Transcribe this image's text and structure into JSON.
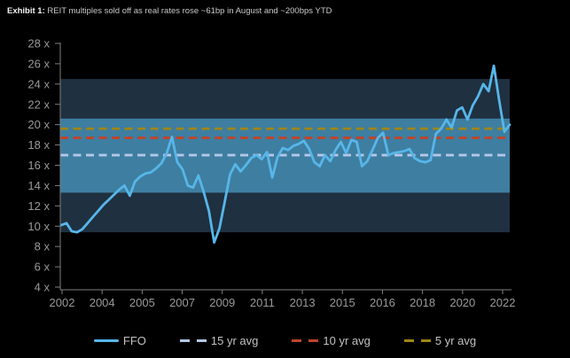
{
  "title": {
    "prefix": "Exhibit 1:",
    "text": "REIT multiples sold off as real rates rose ~61bp in August and ~200bps YTD"
  },
  "chart_data": {
    "type": "line",
    "y_unit": "x",
    "ylim": [
      4,
      28
    ],
    "ytick_step": 2,
    "grid": false,
    "legend_position": "bottom",
    "x_tick_labels": [
      "2002",
      "2004",
      "2005",
      "2007",
      "2009",
      "2011",
      "2013",
      "2015",
      "2016",
      "2018",
      "2020",
      "2022"
    ],
    "y_tick_labels": [
      "28 x",
      "26 x",
      "24 x",
      "22 x",
      "20 x",
      "18 x",
      "16 x",
      "14 x",
      "12 x",
      "10 x",
      "8 x",
      "6 x",
      "4 x"
    ],
    "series": [
      {
        "name": "FFO",
        "type": "line",
        "color": "#57b6e9",
        "values": [
          10.1,
          10.3,
          9.5,
          9.4,
          9.7,
          10.3,
          10.9,
          11.5,
          12.1,
          12.6,
          13.1,
          13.6,
          14.0,
          13.0,
          14.4,
          14.9,
          15.2,
          15.3,
          15.7,
          16.2,
          17.2,
          18.8,
          16.3,
          15.6,
          14.0,
          13.8,
          15.0,
          13.4,
          11.5,
          8.4,
          9.8,
          12.4,
          15.1,
          16.1,
          15.4,
          16.0,
          16.7,
          17.0,
          16.6,
          17.3,
          14.8,
          16.8,
          17.7,
          17.5,
          17.9,
          18.1,
          18.4,
          17.6,
          16.3,
          15.9,
          17.0,
          16.4,
          17.5,
          18.3,
          17.2,
          18.5,
          18.3,
          15.9,
          16.4,
          17.5,
          18.7,
          19.2,
          17.0,
          17.2,
          17.3,
          17.4,
          17.6,
          16.7,
          16.4,
          16.3,
          16.5,
          19.1,
          19.6,
          20.5,
          19.7,
          21.4,
          21.7,
          20.5,
          21.9,
          22.8,
          24.0,
          23.3,
          25.8,
          22.4,
          19.3,
          20.0
        ]
      }
    ],
    "avg_lines": [
      {
        "name": "15 yr avg",
        "value": 17.0,
        "color": "#b4c7e7"
      },
      {
        "name": "10 yr avg",
        "value": 18.7,
        "color": "#c0442a"
      },
      {
        "name": "5 yr avg",
        "value": 19.6,
        "color": "#a08514"
      }
    ],
    "bands": [
      {
        "name": "outer-band",
        "from": 9.4,
        "to": 24.5,
        "color": "#1f3040"
      },
      {
        "name": "inner-band",
        "from": 13.3,
        "to": 20.6,
        "color": "#3e7ea1"
      }
    ]
  },
  "colors": {
    "background": "#000000",
    "axis_line": "#7f7f7f",
    "tick_label": "#999999",
    "title_prefix": "#f2f2f2",
    "title_text": "#c8c8c8",
    "legend_label": "#c2c2c2"
  }
}
